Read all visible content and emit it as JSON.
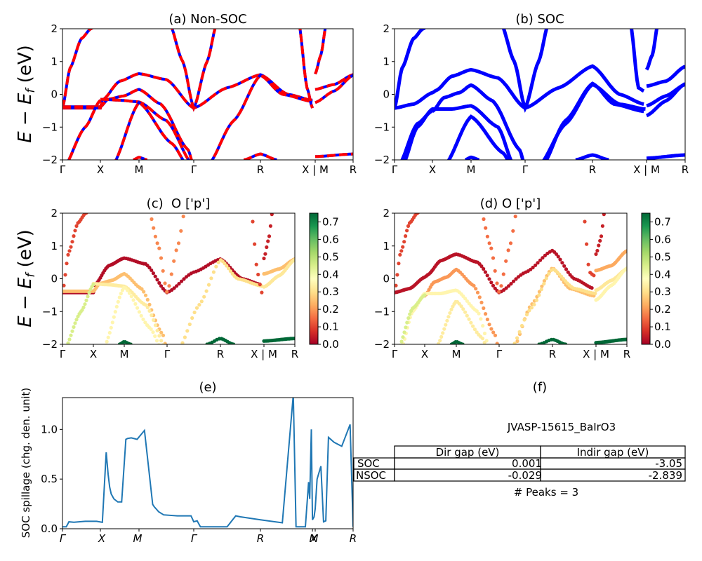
{
  "colors": {
    "soc_blue": "#0000ff",
    "nonsoc_red": "#ff0000",
    "spillage_line": "#1f77b4",
    "axis": "#000000",
    "colormap": [
      "#a50026",
      "#d73027",
      "#f46d43",
      "#fdae61",
      "#fee08b",
      "#ffffbf",
      "#d9ef8b",
      "#a6d96a",
      "#66bd63",
      "#1a9850",
      "#006837"
    ]
  },
  "chart_data": [
    {
      "id": "a",
      "type": "line",
      "title": "(a) Non-SOC",
      "ylabel": "E − E_f (eV)",
      "ylabel_parts": {
        "e1": "E",
        "minus": " − ",
        "e2": "E",
        "sub": "f",
        "unit": " (eV)"
      },
      "ylim": [
        -2,
        2
      ],
      "yticks": [
        "2",
        "1",
        "0",
        "−1",
        "−2"
      ],
      "ytick_values": [
        2,
        1,
        0,
        -1,
        -2
      ],
      "xtick_labels": [
        "Γ",
        "X",
        "M",
        "Γ",
        "R",
        "X | M",
        "R"
      ],
      "series": [
        {
          "name": "SOC (blue)",
          "style": "solid-blue"
        },
        {
          "name": "Non-SOC (red dashed)",
          "style": "dashed-red"
        }
      ]
    },
    {
      "id": "b",
      "type": "line",
      "title": "(b) SOC",
      "ylim": [
        -2,
        2
      ],
      "yticks": [
        "2",
        "1",
        "0",
        "−1",
        "−2"
      ],
      "ytick_values": [
        2,
        1,
        0,
        -1,
        -2
      ],
      "xtick_labels": [
        "Γ",
        "X",
        "M",
        "Γ",
        "R",
        "X | M",
        "R"
      ],
      "series": [
        {
          "name": "SOC",
          "style": "solid-blue"
        }
      ]
    },
    {
      "id": "c",
      "type": "scatter",
      "title": "(c)  O ['p']",
      "ylabel": "E − E_f (eV)",
      "ylabel_parts": {
        "e1": "E",
        "minus": " − ",
        "e2": "E",
        "sub": "f",
        "unit": " (eV)"
      },
      "ylim": [
        -2,
        2
      ],
      "yticks": [
        "2",
        "1",
        "0",
        "−1",
        "−2"
      ],
      "ytick_values": [
        2,
        1,
        0,
        -1,
        -2
      ],
      "xtick_labels": [
        "Γ",
        "X",
        "M",
        "Γ",
        "R",
        "X | M",
        "R"
      ],
      "colorbar": {
        "range": [
          0,
          0.75
        ],
        "ticks": [
          "0.7",
          "0.6",
          "0.5",
          "0.4",
          "0.3",
          "0.2",
          "0.1",
          "0.0"
        ],
        "tick_values": [
          0.7,
          0.6,
          0.5,
          0.4,
          0.3,
          0.2,
          0.1,
          0.0
        ]
      }
    },
    {
      "id": "d",
      "type": "scatter",
      "title": "(d) O ['p']",
      "ylim": [
        -2,
        2
      ],
      "yticks": [
        "2",
        "1",
        "0",
        "−1",
        "−2"
      ],
      "ytick_values": [
        2,
        1,
        0,
        -1,
        -2
      ],
      "xtick_labels": [
        "Γ",
        "X",
        "M",
        "Γ",
        "R",
        "X | M",
        "R"
      ],
      "colorbar": {
        "range": [
          0,
          0.75
        ],
        "ticks": [
          "0.7",
          "0.6",
          "0.5",
          "0.4",
          "0.3",
          "0.2",
          "0.1",
          "0.0"
        ],
        "tick_values": [
          0.7,
          0.6,
          0.5,
          0.4,
          0.3,
          0.2,
          0.1,
          0.0
        ]
      }
    },
    {
      "id": "e",
      "type": "line",
      "title": "(e)",
      "ylabel": "SOC spillage (chg. den. unit)",
      "ylim": [
        0,
        1.32
      ],
      "yticks": [
        "1.0",
        "0.5",
        "0.0"
      ],
      "ytick_values": [
        1.0,
        0.5,
        0.0
      ],
      "xtick_labels": [
        "Γ",
        "X",
        "M",
        "Γ",
        "R",
        "X",
        "M",
        "R"
      ],
      "xtick_positions_k": [
        0,
        1,
        2,
        3,
        4,
        4.95,
        5,
        6
      ],
      "series": [
        {
          "name": "spillage",
          "k": [
            0,
            0.1,
            0.17,
            0.3,
            0.6,
            0.9,
            1.05,
            1.15,
            1.2,
            1.24,
            1.28,
            1.35,
            1.45,
            1.55,
            1.66,
            1.71,
            1.72,
            1.8,
            1.95,
            2.1,
            2.25,
            2.28,
            2.33,
            2.36,
            2.45,
            2.7,
            2.95,
            3.0,
            3.05,
            3.1,
            3.15,
            3.2,
            3.5,
            3.63,
            3.7,
            4.0,
            4.4,
            4.6,
            4.65,
            4.8,
            4.82,
            4.88,
            4.9,
            4.93,
            4.95,
            4.98,
            5.0,
            5.05,
            5.15,
            5.22,
            5.28,
            5.35,
            5.5,
            5.7,
            5.92,
            6.0
          ],
          "values": [
            0.02,
            0.02,
            0.07,
            0.065,
            0.075,
            0.075,
            0.065,
            0.77,
            0.55,
            0.42,
            0.35,
            0.3,
            0.27,
            0.27,
            0.9,
            0.91,
            0.91,
            0.915,
            0.9,
            0.99,
            0.245,
            0.22,
            0.19,
            0.17,
            0.14,
            0.13,
            0.13,
            0.07,
            0.08,
            0.02,
            0.02,
            0.02,
            0.02,
            0.13,
            0.12,
            0.09,
            0.06,
            1.35,
            0.02,
            0.02,
            0.02,
            0.47,
            0.3,
            1.0,
            0.09,
            0.12,
            0.2,
            0.5,
            0.63,
            0.07,
            0.08,
            0.92,
            0.87,
            0.83,
            1.05,
            0.02
          ]
        }
      ]
    }
  ],
  "panel_f": {
    "title": "(f)",
    "material": "JVASP-15615_BaIrO3",
    "table": {
      "columns": [
        "",
        "Dir gap (eV)",
        "Indir gap (eV)"
      ],
      "rows": [
        {
          "label": "SOC",
          "dir": "0.001",
          "indir": "-3.05"
        },
        {
          "label": "NSOC",
          "dir": "-0.029",
          "indir": "-2.839"
        }
      ]
    },
    "peaks": "# Peaks = 3"
  }
}
